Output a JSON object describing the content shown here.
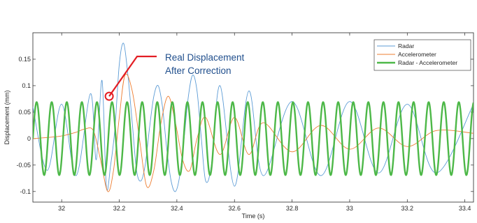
{
  "chart_data": {
    "type": "line",
    "title": "",
    "xlabel": "Time (s)",
    "ylabel": "Displacement (mm)",
    "xlim": [
      31.9,
      33.43
    ],
    "ylim": [
      -0.12,
      0.2
    ],
    "xticks": [
      32,
      32.2,
      32.4,
      32.6,
      32.8,
      33,
      33.2,
      33.4
    ],
    "xtick_labels": [
      "32",
      "32.2",
      "32.4",
      "32.6",
      "32.8",
      "33",
      "33.2",
      "33.4"
    ],
    "yticks": [
      -0.1,
      -0.05,
      0,
      0.05,
      0.1,
      0.15
    ],
    "ytick_labels": [
      "-0.1",
      "-0.05",
      "0",
      "0.05",
      "0.1",
      "0.15"
    ],
    "grid": false,
    "legend_position": "top-right",
    "series": [
      {
        "name": "Radar",
        "color": "#5b9bd5",
        "x": [
          31.9,
          31.95,
          32.0,
          32.05,
          32.1,
          32.12,
          32.14,
          32.155,
          32.17,
          32.185,
          32.2,
          32.215,
          32.23,
          32.245,
          32.26,
          32.275,
          32.29,
          32.305,
          32.32,
          32.335,
          32.35,
          32.365,
          32.38,
          32.395,
          32.41,
          32.425,
          32.44,
          32.455,
          32.47,
          32.485,
          32.5,
          32.52,
          32.55,
          32.6,
          32.65,
          32.7,
          32.8,
          32.9,
          33.0,
          33.1,
          33.2,
          33.3,
          33.43
        ],
        "y": [
          0.06,
          -0.06,
          0.065,
          -0.07,
          0.085,
          -0.04,
          0.11,
          -0.09,
          -0.05,
          0.02,
          0.14,
          0.18,
          0.12,
          0.03,
          -0.06,
          -0.08,
          -0.05,
          0.02,
          0.08,
          0.1,
          0.06,
          -0.02,
          -0.08,
          -0.1,
          -0.07,
          0.0,
          0.08,
          0.12,
          0.09,
          0.0,
          -0.08,
          -0.05,
          0.1,
          -0.09,
          0.09,
          -0.07,
          0.07,
          -0.07,
          0.07,
          -0.065,
          0.065,
          -0.065,
          0.065
        ]
      },
      {
        "name": "Accelerometer",
        "color": "#ed7d31",
        "x": [
          31.9,
          31.95,
          32.0,
          32.05,
          32.08,
          32.11,
          32.135,
          32.16,
          32.18,
          32.2,
          32.22,
          32.245,
          32.27,
          32.295,
          32.32,
          32.345,
          32.37,
          32.395,
          32.42,
          32.445,
          32.47,
          32.5,
          32.55,
          32.6,
          32.65,
          32.7,
          32.8,
          32.9,
          33.0,
          33.1,
          33.2,
          33.3,
          33.43
        ],
        "y": [
          0.0,
          0.002,
          0.005,
          0.012,
          0.018,
          0.015,
          -0.04,
          -0.1,
          -0.06,
          0.04,
          0.12,
          0.09,
          0.0,
          -0.09,
          -0.06,
          0.03,
          0.08,
          0.03,
          -0.04,
          -0.06,
          0.0,
          0.04,
          -0.03,
          0.04,
          -0.03,
          0.03,
          -0.025,
          0.025,
          -0.02,
          0.02,
          -0.015,
          0.015,
          0.01
        ]
      },
      {
        "name": "Radar - Accelerometer",
        "color": "#4db848",
        "frequency_hz": 19.1,
        "amplitude": 0.069,
        "x_start": 31.9,
        "x_end": 33.43
      }
    ],
    "annotations": [
      {
        "text_lines": [
          "Real Displacement",
          "After Correction"
        ],
        "x": 32.165,
        "y": 0.08,
        "color": "#e31e24",
        "text_color": "#1f4e8c"
      }
    ]
  }
}
